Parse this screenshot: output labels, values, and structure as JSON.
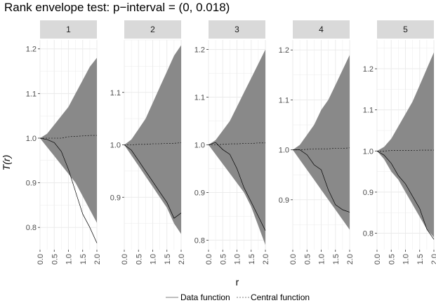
{
  "chart_data": {
    "type": "area",
    "title": "Rank envelope test: p−interval = (0, 0.018)",
    "xlabel": "r",
    "ylabel": "T(r)",
    "x_range": [
      0,
      2
    ],
    "x_ticks": [
      "0.0",
      "0.5",
      "1.0",
      "1.5",
      "2.0"
    ],
    "legend": {
      "position": "bottom",
      "entries": [
        "Data function",
        "Central function"
      ]
    },
    "colors": {
      "envelope": "#898989",
      "panel_background": "#ffffff",
      "strip_background": "#d9d9d9",
      "grid": "#ebebeb",
      "line": "#000000"
    },
    "panels": [
      {
        "label": "1",
        "ylim": [
          0.75,
          1.22
        ],
        "y_ticks": [
          "0.8",
          "0.9",
          "1.0",
          "1.1",
          "1.2"
        ],
        "x": [
          0,
          0.25,
          0.5,
          0.75,
          1.0,
          1.25,
          1.5,
          1.75,
          2.0
        ],
        "upper": [
          1.0,
          1.01,
          1.03,
          1.05,
          1.07,
          1.1,
          1.13,
          1.16,
          1.18
        ],
        "lower": [
          1.0,
          0.98,
          0.96,
          0.94,
          0.92,
          0.9,
          0.87,
          0.84,
          0.81
        ],
        "central": [
          1.0,
          1.0,
          1.0,
          1.0,
          1.003,
          1.004,
          1.005,
          1.006,
          1.006
        ],
        "data": [
          1.0,
          0.997,
          0.99,
          0.97,
          0.93,
          0.88,
          0.83,
          0.8,
          0.765
        ]
      },
      {
        "label": "2",
        "ylim": [
          0.8,
          1.2
        ],
        "y_ticks": [
          "0.9",
          "1.0",
          "1.1"
        ],
        "x": [
          0,
          0.25,
          0.5,
          0.75,
          1.0,
          1.25,
          1.5,
          1.75,
          2.0
        ],
        "upper": [
          1.0,
          1.01,
          1.03,
          1.05,
          1.08,
          1.11,
          1.14,
          1.17,
          1.19
        ],
        "lower": [
          1.0,
          0.98,
          0.96,
          0.94,
          0.92,
          0.9,
          0.88,
          0.85,
          0.83
        ],
        "central": [
          1.0,
          1.0,
          1.001,
          1.001,
          1.002,
          1.002,
          1.003,
          1.003,
          1.004
        ],
        "data": [
          1.0,
          0.99,
          0.97,
          0.95,
          0.93,
          0.91,
          0.89,
          0.86,
          0.87
        ]
      },
      {
        "label": "3",
        "ylim": [
          0.78,
          1.22
        ],
        "y_ticks": [
          "0.8",
          "0.9",
          "1.0",
          "1.1",
          "1.2"
        ],
        "x": [
          0,
          0.25,
          0.5,
          0.75,
          1.0,
          1.25,
          1.5,
          1.75,
          2.0
        ],
        "upper": [
          1.0,
          1.01,
          1.03,
          1.05,
          1.08,
          1.11,
          1.14,
          1.17,
          1.2
        ],
        "lower": [
          1.0,
          0.98,
          0.96,
          0.94,
          0.92,
          0.9,
          0.87,
          0.83,
          0.79
        ],
        "central": [
          1.0,
          1.0,
          1.001,
          1.002,
          1.002,
          1.003,
          1.003,
          1.004,
          1.004
        ],
        "data": [
          1.0,
          1.005,
          0.99,
          0.98,
          0.95,
          0.91,
          0.88,
          0.85,
          0.82
        ]
      },
      {
        "label": "4",
        "ylim": [
          0.8,
          1.22
        ],
        "y_ticks": [
          "0.9",
          "1.0",
          "1.1",
          "1.2"
        ],
        "x": [
          0,
          0.25,
          0.5,
          0.75,
          1.0,
          1.25,
          1.5,
          1.75,
          2.0
        ],
        "upper": [
          1.0,
          1.01,
          1.03,
          1.05,
          1.08,
          1.1,
          1.13,
          1.16,
          1.19
        ],
        "lower": [
          1.0,
          0.98,
          0.96,
          0.94,
          0.92,
          0.9,
          0.88,
          0.86,
          0.84
        ],
        "central": [
          1.0,
          1.0,
          1.001,
          1.002,
          1.002,
          1.002,
          1.003,
          1.003,
          1.004
        ],
        "data": [
          1.0,
          1.0,
          0.99,
          0.97,
          0.96,
          0.92,
          0.89,
          0.88,
          0.875
        ]
      },
      {
        "label": "5",
        "ylim": [
          0.76,
          1.27
        ],
        "y_ticks": [
          "0.8",
          "0.9",
          "1.0",
          "1.1",
          "1.2"
        ],
        "x": [
          0,
          0.25,
          0.5,
          0.75,
          1.0,
          1.25,
          1.5,
          1.75,
          2.0
        ],
        "upper": [
          1.0,
          1.01,
          1.03,
          1.06,
          1.09,
          1.12,
          1.16,
          1.2,
          1.24
        ],
        "lower": [
          1.0,
          0.98,
          0.95,
          0.93,
          0.9,
          0.87,
          0.84,
          0.81,
          0.79
        ],
        "central": [
          1.0,
          1.0,
          1.001,
          1.001,
          1.001,
          1.001,
          1.002,
          1.002,
          1.002
        ],
        "data": [
          1.0,
          0.99,
          0.97,
          0.94,
          0.92,
          0.89,
          0.86,
          0.81,
          0.785
        ]
      }
    ]
  }
}
